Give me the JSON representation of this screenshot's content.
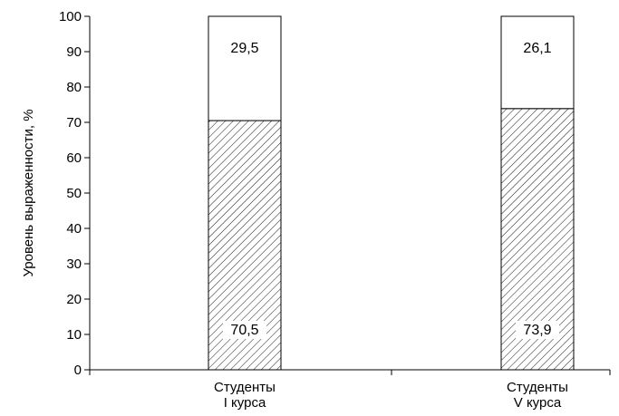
{
  "chart_data": {
    "type": "bar",
    "stacked": true,
    "categories": [
      "Студенты\nI курса",
      "Студенты\nV курса"
    ],
    "series": [
      {
        "pattern": "hatched",
        "values": [
          70.5,
          73.9
        ]
      },
      {
        "pattern": "white",
        "values": [
          29.5,
          26.1
        ]
      }
    ],
    "data_labels": [
      [
        "70,5",
        "73,9"
      ],
      [
        "29,5",
        "26,1"
      ]
    ],
    "title": "",
    "xlabel": "",
    "ylabel": "Уровень выраженности, %",
    "ylim": [
      0,
      100
    ],
    "yticks": [
      0,
      10,
      20,
      30,
      40,
      50,
      60,
      70,
      80,
      90,
      100
    ],
    "grid": false,
    "legend": "none"
  }
}
